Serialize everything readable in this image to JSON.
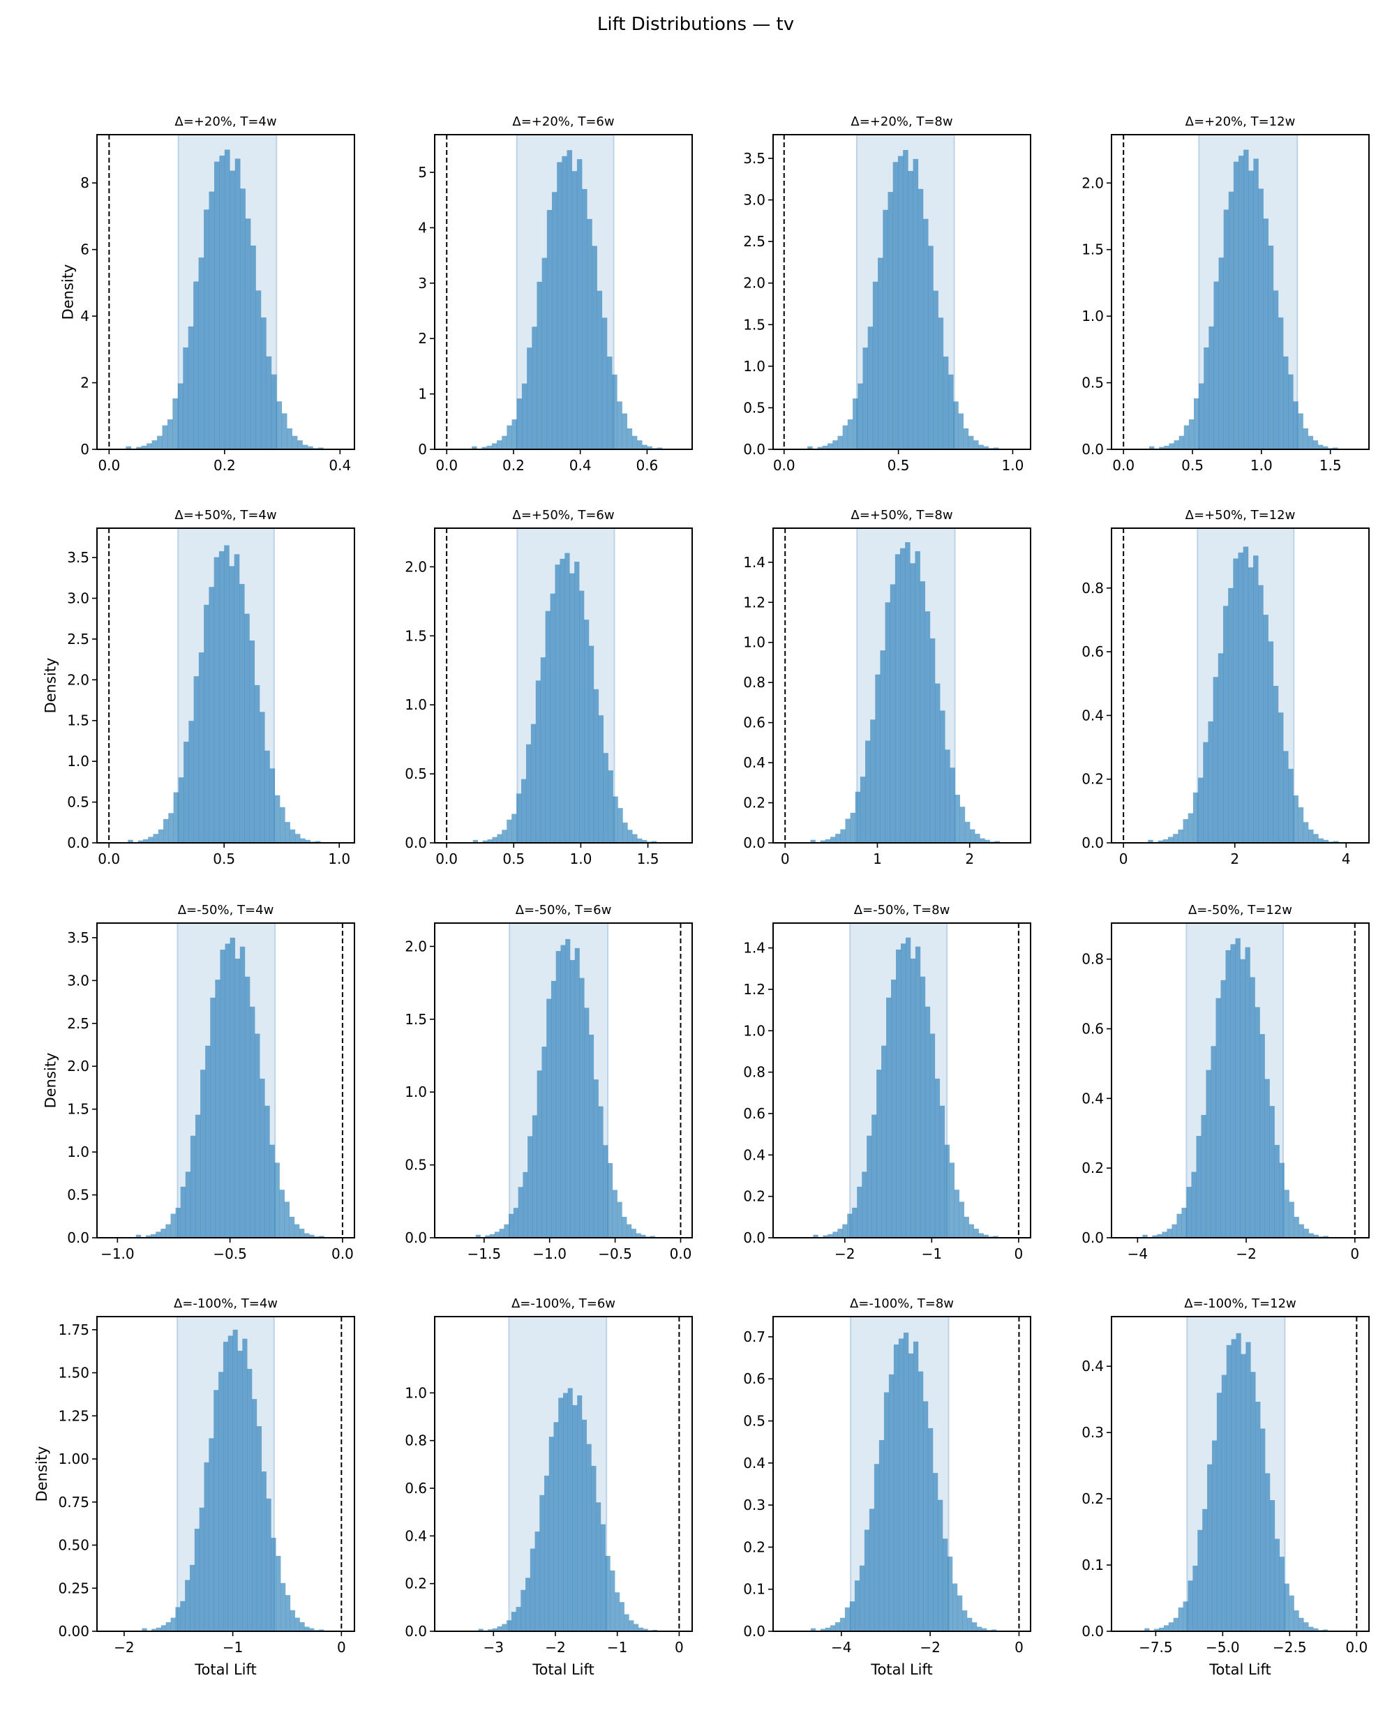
{
  "chart_data": {
    "type": "histogram-grid",
    "title": "Lift Distributions — tv",
    "xlabel": "Total Lift",
    "ylabel": "Density",
    "colors": {
      "bar": "#1f77b4",
      "ci_band": "#dde9f3",
      "ci_edge": "#bcd3e8",
      "zero_line": "#000000"
    },
    "reference_line_x": 0,
    "bin_shape_note": "relative bin heights (fraction of peak) for 40 bins spanning mean ± 4 sd",
    "shape": [
      0,
      0.01,
      0,
      0.008,
      0.012,
      0.02,
      0.03,
      0.045,
      0.08,
      0.1,
      0.17,
      0.22,
      0.34,
      0.41,
      0.56,
      0.64,
      0.8,
      0.86,
      0.96,
      0.98,
      1.0,
      0.93,
      0.97,
      0.87,
      0.77,
      0.68,
      0.53,
      0.44,
      0.31,
      0.25,
      0.16,
      0.12,
      0.07,
      0.045,
      0.03,
      0.015,
      0.01,
      0.004,
      0.006,
      0
    ],
    "panels": [
      {
        "title": "Δ=+20%, T=4w",
        "mean": 0.2,
        "sd": 0.045,
        "peak": 9.0,
        "ci": [
          0.12,
          0.29
        ],
        "xlim": [
          -0.021,
          0.425
        ],
        "ylim": [
          0,
          9.45
        ],
        "xticks": [
          0,
          0.2,
          0.4
        ],
        "xticklabels": [
          "0.0",
          "0.2",
          "0.4"
        ],
        "yticks": [
          0,
          2,
          4,
          6,
          8
        ],
        "yticklabels": [
          "0",
          "2",
          "4",
          "6",
          "8"
        ]
      },
      {
        "title": "Δ=+20%, T=6w",
        "mean": 0.36,
        "sd": 0.075,
        "peak": 5.4,
        "ci": [
          0.21,
          0.5
        ],
        "xlim": [
          -0.036,
          0.735
        ],
        "ylim": [
          0,
          5.68
        ],
        "xticks": [
          0,
          0.2,
          0.4,
          0.6
        ],
        "xticklabels": [
          "0.0",
          "0.2",
          "0.4",
          "0.6"
        ],
        "yticks": [
          0,
          1,
          2,
          3,
          4,
          5
        ],
        "yticklabels": [
          "0",
          "1",
          "2",
          "3",
          "4",
          "5"
        ]
      },
      {
        "title": "Δ=+20%, T=8w",
        "mean": 0.52,
        "sd": 0.11,
        "peak": 3.6,
        "ci": [
          0.318,
          0.744
        ],
        "xlim": [
          -0.048,
          1.078
        ],
        "ylim": [
          0,
          3.785
        ],
        "xticks": [
          0,
          0.5,
          1.0
        ],
        "xticklabels": [
          "0.0",
          "0.5",
          "1.0"
        ],
        "yticks": [
          0,
          0.5,
          1,
          1.5,
          2,
          2.5,
          3,
          3.5
        ],
        "yticklabels": [
          "0.0",
          "0.5",
          "1.0",
          "1.5",
          "2.0",
          "2.5",
          "3.0",
          "3.5"
        ]
      },
      {
        "title": "Δ=+20%, T=12w",
        "mean": 0.87,
        "sd": 0.18,
        "peak": 2.25,
        "ci": [
          0.547,
          1.26
        ],
        "xlim": [
          -0.087,
          1.78
        ],
        "ylim": [
          0,
          2.363
        ],
        "xticks": [
          0,
          0.5,
          1.0,
          1.5
        ],
        "xticklabels": [
          "0.0",
          "0.5",
          "1.0",
          "1.5"
        ],
        "yticks": [
          0,
          0.5,
          1,
          1.5,
          2
        ],
        "yticklabels": [
          "0.0",
          "0.5",
          "1.0",
          "1.5",
          "2.0"
        ]
      },
      {
        "title": "Δ=+50%, T=4w",
        "mean": 0.5,
        "sd": 0.11,
        "peak": 3.65,
        "ci": [
          0.3,
          0.717
        ],
        "xlim": [
          -0.052,
          1.066
        ],
        "ylim": [
          0,
          3.86
        ],
        "xticks": [
          0,
          0.5,
          1.0
        ],
        "xticklabels": [
          "0.0",
          "0.5",
          "1.0"
        ],
        "yticks": [
          0,
          0.5,
          1,
          1.5,
          2,
          2.5,
          3,
          3.5
        ],
        "yticklabels": [
          "0.0",
          "0.5",
          "1.0",
          "1.5",
          "2.0",
          "2.5",
          "3.0",
          "3.5"
        ]
      },
      {
        "title": "Δ=+50%, T=6w",
        "mean": 0.88,
        "sd": 0.18,
        "peak": 2.1,
        "ci": [
          0.527,
          1.25
        ],
        "xlim": [
          -0.089,
          1.83
        ],
        "ylim": [
          0,
          2.28
        ],
        "xticks": [
          0,
          0.5,
          1.0,
          1.5
        ],
        "xticklabels": [
          "0.0",
          "0.5",
          "1.0",
          "1.5"
        ],
        "yticks": [
          0,
          0.5,
          1,
          1.5,
          2
        ],
        "yticklabels": [
          "0.0",
          "0.5",
          "1.0",
          "1.5",
          "2.0"
        ]
      },
      {
        "title": "Δ=+50%, T=8w",
        "mean": 1.3,
        "sd": 0.27,
        "peak": 1.5,
        "ci": [
          0.78,
          1.84
        ],
        "xlim": [
          -0.13,
          2.66
        ],
        "ylim": [
          0,
          1.57
        ],
        "xticks": [
          0,
          1,
          2
        ],
        "xticklabels": [
          "0",
          "1",
          "2"
        ],
        "yticks": [
          0,
          0.2,
          0.4,
          0.6,
          0.8,
          1.0,
          1.2,
          1.4
        ],
        "yticklabels": [
          "0.0",
          "0.2",
          "0.4",
          "0.6",
          "0.8",
          "1.0",
          "1.2",
          "1.4"
        ]
      },
      {
        "title": "Δ=+50%, T=12w",
        "mean": 2.15,
        "sd": 0.45,
        "peak": 0.93,
        "ci": [
          1.33,
          3.06
        ],
        "xlim": [
          -0.215,
          4.41
        ],
        "ylim": [
          0,
          0.988
        ],
        "xticks": [
          0,
          2,
          4
        ],
        "xticklabels": [
          "0",
          "2",
          "4"
        ],
        "yticks": [
          0,
          0.2,
          0.4,
          0.6,
          0.8
        ],
        "yticklabels": [
          "0.0",
          "0.2",
          "0.4",
          "0.6",
          "0.8"
        ]
      },
      {
        "title": "Δ=-50%, T=4w",
        "mean": -0.5,
        "sd": 0.11,
        "peak": 3.5,
        "ci": [
          -0.733,
          -0.3
        ],
        "xlim": [
          -1.091,
          0.053
        ],
        "ylim": [
          0,
          3.67
        ],
        "xticks": [
          -1.0,
          -0.5,
          0
        ],
        "xticklabels": [
          "−1.0",
          "−0.5",
          "0.0"
        ],
        "yticks": [
          0,
          0.5,
          1,
          1.5,
          2,
          2.5,
          3,
          3.5
        ],
        "yticklabels": [
          "0.0",
          "0.5",
          "1.0",
          "1.5",
          "2.0",
          "2.5",
          "3.0",
          "3.5"
        ]
      },
      {
        "title": "Δ=-50%, T=6w",
        "mean": -0.88,
        "sd": 0.18,
        "peak": 2.05,
        "ci": [
          -1.306,
          -0.556
        ],
        "xlim": [
          -1.877,
          0.088
        ],
        "ylim": [
          0,
          2.16
        ],
        "xticks": [
          -1.5,
          -1.0,
          -0.5,
          0
        ],
        "xticklabels": [
          "−1.5",
          "−1.0",
          "−0.5",
          "0.0"
        ],
        "yticks": [
          0,
          0.5,
          1,
          1.5,
          2
        ],
        "yticklabels": [
          "0.0",
          "0.5",
          "1.0",
          "1.5",
          "2.0"
        ]
      },
      {
        "title": "Δ=-50%, T=8w",
        "mean": -1.3,
        "sd": 0.28,
        "peak": 1.45,
        "ci": [
          -1.94,
          -0.825
        ],
        "xlim": [
          -2.825,
          0.1375
        ],
        "ylim": [
          0,
          1.52
        ],
        "xticks": [
          -2,
          -1,
          0
        ],
        "xticklabels": [
          "−2",
          "−1",
          "0"
        ],
        "yticks": [
          0,
          0.2,
          0.4,
          0.6,
          0.8,
          1.0,
          1.2,
          1.4
        ],
        "yticklabels": [
          "0.0",
          "0.2",
          "0.4",
          "0.6",
          "0.8",
          "1.0",
          "1.2",
          "1.4"
        ]
      },
      {
        "title": "Δ=-50%, T=12w",
        "mean": -2.2,
        "sd": 0.45,
        "peak": 0.86,
        "ci": [
          -3.1,
          -1.32
        ],
        "xlim": [
          -4.48,
          0.26
        ],
        "ylim": [
          0,
          0.9035
        ],
        "xticks": [
          -4,
          -2,
          0
        ],
        "xticklabels": [
          "−4",
          "−2",
          "0"
        ],
        "yticks": [
          0,
          0.2,
          0.4,
          0.6,
          0.8
        ],
        "yticklabels": [
          "0.0",
          "0.2",
          "0.4",
          "0.6",
          "0.8"
        ]
      },
      {
        "title": "Δ=-100%, T=4w",
        "mean": -1.0,
        "sd": 0.22,
        "peak": 1.75,
        "ci": [
          -1.51,
          -0.62
        ],
        "xlim": [
          -2.25,
          0.12
        ],
        "ylim": [
          0,
          1.826
        ],
        "xticks": [
          -2,
          -1,
          0
        ],
        "xticklabels": [
          "−2",
          "−1",
          "0"
        ],
        "yticks": [
          0,
          0.25,
          0.5,
          0.75,
          1.0,
          1.25,
          1.5,
          1.75
        ],
        "yticklabels": [
          "0.00",
          "0.25",
          "0.50",
          "0.75",
          "1.00",
          "1.25",
          "1.50",
          "1.75"
        ]
      },
      {
        "title": "Δ=-100%, T=6w",
        "mean": -1.8,
        "sd": 0.38,
        "peak": 1.02,
        "ci": [
          -2.75,
          -1.175
        ],
        "xlim": [
          -3.95,
          0.21
        ],
        "ylim": [
          0,
          1.32
        ],
        "xticks": [
          -3,
          -2,
          -1,
          0
        ],
        "xticklabels": [
          "−3",
          "−2",
          "−1",
          "0"
        ],
        "yticks": [
          0,
          0.2,
          0.4,
          0.6,
          0.8,
          1.0
        ],
        "yticklabels": [
          "0.0",
          "0.2",
          "0.4",
          "0.6",
          "0.8",
          "1.0"
        ]
      },
      {
        "title": "Δ=-100%, T=8w",
        "mean": -2.6,
        "sd": 0.55,
        "peak": 0.71,
        "ci": [
          -3.79,
          -1.586
        ],
        "xlim": [
          -5.536,
          0.26
        ],
        "ylim": [
          0,
          0.748
        ],
        "xticks": [
          -4,
          -2,
          0
        ],
        "xticklabels": [
          "−4",
          "−2",
          "0"
        ],
        "yticks": [
          0,
          0.1,
          0.2,
          0.3,
          0.4,
          0.5,
          0.6,
          0.7
        ],
        "yticklabels": [
          "0.0",
          "0.1",
          "0.2",
          "0.3",
          "0.4",
          "0.5",
          "0.6",
          "0.7"
        ]
      },
      {
        "title": "Δ=-100%, T=12w",
        "mean": -4.5,
        "sd": 0.9,
        "peak": 0.45,
        "ci": [
          -6.33,
          -2.68
        ],
        "xlim": [
          -9.15,
          0.46
        ],
        "ylim": [
          0,
          0.475
        ],
        "xticks": [
          -7.5,
          -5.0,
          -2.5,
          0
        ],
        "xticklabels": [
          "−7.5",
          "−5.0",
          "−2.5",
          "0.0"
        ],
        "yticks": [
          0,
          0.1,
          0.2,
          0.3,
          0.4
        ],
        "yticklabels": [
          "0.0",
          "0.1",
          "0.2",
          "0.3",
          "0.4"
        ]
      }
    ]
  }
}
